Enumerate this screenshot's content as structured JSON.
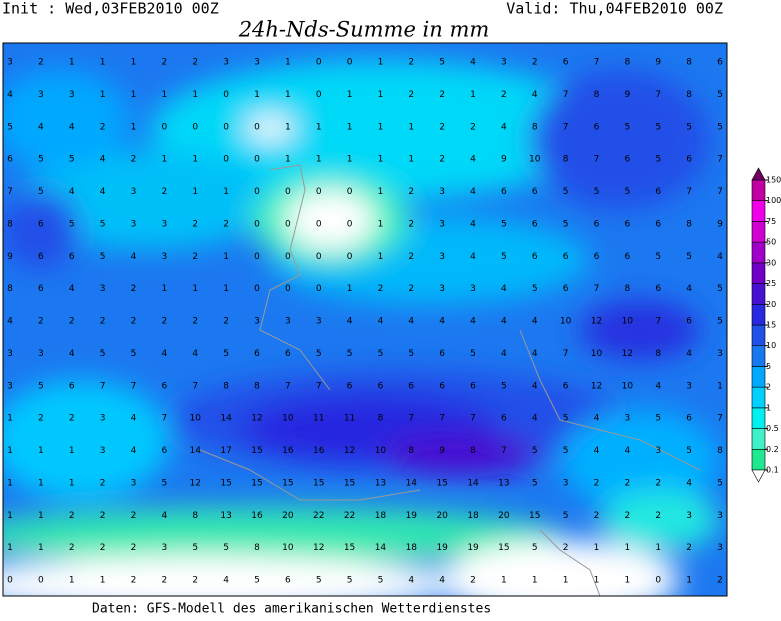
{
  "header": {
    "init": "Init : Wed,03FEB2010 00Z",
    "valid": "Valid: Thu,04FEB2010 00Z",
    "title": "24h-Nds-Summe in mm"
  },
  "colorbar": {
    "levels": [
      0.1,
      0.2,
      0.5,
      1,
      2,
      5,
      10,
      15,
      20,
      25,
      30,
      50,
      75,
      100,
      150
    ],
    "colors": [
      "#20e890",
      "#40f0c8",
      "#00f0f0",
      "#00d0ff",
      "#00a8ff",
      "#1878f0",
      "#2050e8",
      "#2828e0",
      "#4810d0",
      "#7000c8",
      "#a000c8",
      "#d000d0",
      "#f000e8",
      "#c000a0",
      "#700060"
    ]
  },
  "grid": {
    "rows": [
      [
        3,
        2,
        1,
        1,
        1,
        2,
        2,
        3,
        3,
        1,
        0,
        0,
        1,
        2,
        5,
        4,
        3,
        2,
        6,
        7,
        8,
        9,
        8,
        6
      ],
      [
        4,
        3,
        3,
        1,
        1,
        1,
        1,
        0,
        1,
        1,
        0,
        1,
        1,
        2,
        2,
        1,
        2,
        4,
        7,
        8,
        9,
        7,
        8,
        5
      ],
      [
        5,
        4,
        4,
        2,
        1,
        0,
        0,
        0,
        0,
        1,
        1,
        1,
        1,
        1,
        2,
        2,
        4,
        8,
        7,
        6,
        5,
        5,
        5,
        5
      ],
      [
        6,
        5,
        5,
        4,
        2,
        1,
        1,
        0,
        0,
        1,
        1,
        1,
        1,
        1,
        2,
        4,
        9,
        10,
        8,
        7,
        6,
        5,
        6,
        7
      ],
      [
        7,
        5,
        4,
        4,
        3,
        2,
        1,
        1,
        0,
        0,
        0,
        0,
        1,
        2,
        3,
        4,
        6,
        6,
        5,
        5,
        5,
        6,
        7,
        7
      ],
      [
        8,
        6,
        5,
        5,
        3,
        3,
        2,
        2,
        0,
        0,
        0,
        0,
        1,
        2,
        3,
        4,
        5,
        6,
        5,
        6,
        6,
        6,
        8,
        9
      ],
      [
        9,
        6,
        6,
        5,
        4,
        3,
        2,
        1,
        0,
        0,
        0,
        0,
        1,
        2,
        3,
        4,
        5,
        6,
        6,
        6,
        6,
        5,
        5,
        4
      ],
      [
        8,
        6,
        4,
        3,
        2,
        1,
        1,
        1,
        0,
        0,
        0,
        1,
        2,
        2,
        3,
        3,
        4,
        5,
        6,
        7,
        8,
        6,
        4,
        5
      ],
      [
        4,
        2,
        2,
        2,
        2,
        2,
        2,
        2,
        3,
        3,
        3,
        4,
        4,
        4,
        4,
        4,
        4,
        4,
        10,
        12,
        10,
        7,
        6,
        5
      ],
      [
        3,
        3,
        4,
        5,
        5,
        4,
        4,
        5,
        6,
        6,
        5,
        5,
        5,
        5,
        6,
        5,
        4,
        4,
        7,
        10,
        12,
        8,
        4,
        3
      ],
      [
        3,
        5,
        6,
        7,
        7,
        6,
        7,
        8,
        8,
        7,
        7,
        6,
        6,
        6,
        6,
        6,
        5,
        4,
        6,
        12,
        10,
        4,
        3,
        1
      ],
      [
        1,
        2,
        2,
        3,
        4,
        7,
        10,
        14,
        12,
        10,
        11,
        11,
        8,
        7,
        7,
        7,
        6,
        4,
        5,
        4,
        3,
        5,
        6,
        7
      ],
      [
        1,
        1,
        1,
        3,
        4,
        6,
        14,
        17,
        15,
        16,
        16,
        12,
        10,
        8,
        9,
        8,
        7,
        5,
        5,
        4,
        4,
        3,
        5,
        8
      ],
      [
        1,
        1,
        1,
        2,
        3,
        5,
        12,
        15,
        15,
        15,
        15,
        15,
        13,
        14,
        15,
        14,
        13,
        5,
        3,
        2,
        2,
        2,
        4,
        5
      ],
      [
        1,
        1,
        2,
        2,
        2,
        4,
        8,
        13,
        16,
        20,
        22,
        22,
        18,
        19,
        20,
        18,
        20,
        15,
        5,
        2,
        2,
        2,
        3,
        3
      ],
      [
        1,
        1,
        2,
        2,
        2,
        3,
        5,
        5,
        8,
        10,
        12,
        15,
        14,
        18,
        19,
        19,
        15,
        5,
        2,
        1,
        1,
        1,
        2,
        3
      ],
      [
        0,
        0,
        1,
        1,
        2,
        2,
        2,
        4,
        5,
        6,
        5,
        5,
        5,
        4,
        4,
        2,
        1,
        1,
        1,
        1,
        1,
        0,
        1,
        2
      ]
    ]
  },
  "footer": "Daten: GFS-Modell des amerikanischen Wetterdienstes"
}
